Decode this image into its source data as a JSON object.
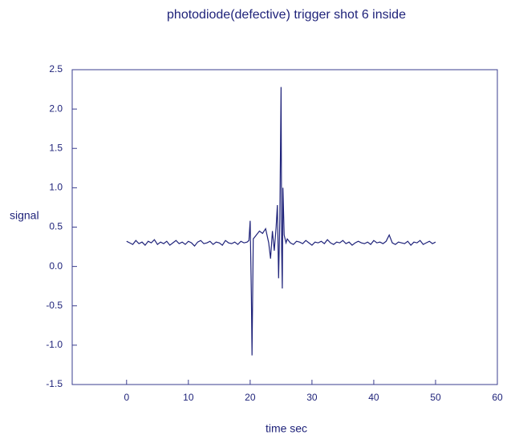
{
  "chart_data": {
    "type": "line",
    "title": "photodiode(defective) trigger shot 6 inside",
    "xlabel": "time sec",
    "ylabel": "signal",
    "color": "#1f237a",
    "xlim": [
      -8.8,
      60
    ],
    "ylim": [
      -1.5,
      2.5
    ],
    "xticks": [
      0,
      10,
      20,
      30,
      40,
      50,
      60
    ],
    "yticks": [
      -1.5,
      {
        "value": -1,
        "label": "-1.0"
      },
      -0.5,
      {
        "value": 0,
        "label": "0.0"
      },
      0.5,
      {
        "value": 1,
        "label": "1.0"
      },
      1.5,
      {
        "value": 2,
        "label": "2.0"
      },
      2.5
    ],
    "x": [
      0,
      0.5,
      1,
      1.5,
      2,
      2.5,
      3,
      3.5,
      4,
      4.5,
      5,
      5.5,
      6,
      6.5,
      7,
      7.5,
      8,
      8.5,
      9,
      9.5,
      10,
      10.5,
      11,
      11.5,
      12,
      12.5,
      13,
      13.5,
      14,
      14.5,
      15,
      15.5,
      16,
      16.5,
      17,
      17.5,
      18,
      18.5,
      19,
      19.5,
      19.8,
      20,
      20.2,
      20.3,
      20.5,
      21,
      21.5,
      22,
      22.5,
      23,
      23.3,
      23.6,
      23.9,
      24.2,
      24.4,
      24.6,
      24.8,
      25,
      25.1,
      25.2,
      25.3,
      25.5,
      25.8,
      26,
      26.5,
      27,
      27.5,
      28,
      28.5,
      29,
      29.5,
      30,
      30.5,
      31,
      31.5,
      32,
      32.5,
      33,
      33.5,
      34,
      34.5,
      35,
      35.5,
      36,
      36.5,
      37,
      37.5,
      38,
      38.5,
      39,
      39.5,
      40,
      40.5,
      41,
      41.5,
      42,
      42.5,
      43,
      43.5,
      44,
      44.5,
      45,
      45.5,
      46,
      46.5,
      47,
      47.5,
      48,
      48.5,
      49,
      49.5,
      50
    ],
    "values": [
      0.32,
      0.3,
      0.28,
      0.33,
      0.29,
      0.31,
      0.27,
      0.32,
      0.3,
      0.34,
      0.28,
      0.31,
      0.29,
      0.32,
      0.27,
      0.3,
      0.33,
      0.29,
      0.31,
      0.28,
      0.32,
      0.3,
      0.26,
      0.31,
      0.33,
      0.29,
      0.3,
      0.32,
      0.28,
      0.31,
      0.3,
      0.27,
      0.33,
      0.3,
      0.29,
      0.31,
      0.28,
      0.32,
      0.3,
      0.31,
      0.33,
      0.58,
      -0.4,
      -1.13,
      0.35,
      0.4,
      0.45,
      0.42,
      0.48,
      0.3,
      0.1,
      0.45,
      0.2,
      0.5,
      0.78,
      -0.15,
      0.6,
      2.28,
      0.2,
      -0.28,
      1.0,
      0.4,
      0.3,
      0.35,
      0.3,
      0.28,
      0.32,
      0.31,
      0.29,
      0.33,
      0.3,
      0.27,
      0.31,
      0.3,
      0.32,
      0.29,
      0.34,
      0.3,
      0.28,
      0.31,
      0.3,
      0.33,
      0.29,
      0.31,
      0.27,
      0.3,
      0.32,
      0.3,
      0.29,
      0.31,
      0.28,
      0.33,
      0.3,
      0.31,
      0.29,
      0.32,
      0.4,
      0.3,
      0.28,
      0.31,
      0.3,
      0.29,
      0.32,
      0.27,
      0.31,
      0.3,
      0.33,
      0.28,
      0.3,
      0.32,
      0.29,
      0.31
    ]
  }
}
